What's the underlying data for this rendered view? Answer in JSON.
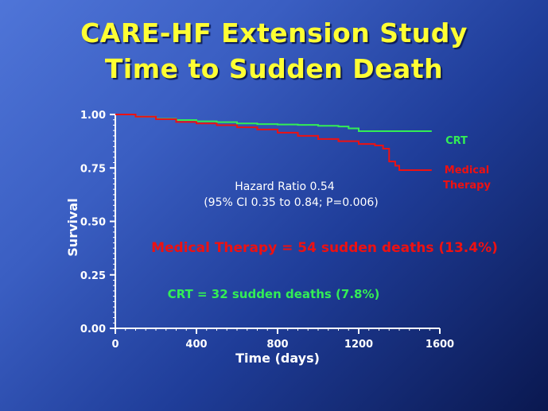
{
  "slide": {
    "title_line1": "CARE-HF Extension Study",
    "title_line2": "Time to Sudden Death"
  },
  "chart_data": {
    "type": "line",
    "title": "CARE-HF Extension Study Time to Sudden Death",
    "xlabel": "Time (days)",
    "ylabel": "Survival",
    "xlim": [
      0,
      1600
    ],
    "ylim": [
      0,
      1.0
    ],
    "x_ticks": [
      0,
      400,
      800,
      1200,
      1600
    ],
    "x_tick_labels": [
      "0",
      "400",
      "800",
      "1200",
      "1600"
    ],
    "y_ticks": [
      0,
      0.25,
      0.5,
      0.75,
      1.0
    ],
    "y_tick_labels": [
      "0.00",
      "0.25",
      "0.50",
      "0.75",
      "1.00"
    ],
    "series": [
      {
        "name": "CRT",
        "color": "#33ee55",
        "x": [
          0,
          100,
          200,
          300,
          400,
          500,
          600,
          700,
          800,
          900,
          1000,
          1100,
          1150,
          1200,
          1300,
          1400,
          1500,
          1560
        ],
        "y": [
          1.0,
          0.99,
          0.98,
          0.974,
          0.968,
          0.964,
          0.958,
          0.955,
          0.953,
          0.951,
          0.947,
          0.944,
          0.935,
          0.922,
          0.922,
          0.922,
          0.922,
          0.922
        ]
      },
      {
        "name": "Medical Therapy",
        "color": "#ee1111",
        "x": [
          0,
          100,
          200,
          300,
          400,
          500,
          600,
          700,
          800,
          900,
          1000,
          1100,
          1200,
          1280,
          1320,
          1350,
          1380,
          1400,
          1500,
          1560
        ],
        "y": [
          1.0,
          0.99,
          0.978,
          0.965,
          0.958,
          0.95,
          0.94,
          0.93,
          0.915,
          0.9,
          0.885,
          0.875,
          0.862,
          0.855,
          0.84,
          0.78,
          0.76,
          0.74,
          0.74,
          0.74
        ]
      }
    ],
    "legend_labels": {
      "crt": "CRT",
      "medical_line1": "Medical",
      "medical_line2": "Therapy"
    },
    "annotations": {
      "hazard_line1": "Hazard Ratio 0.54",
      "hazard_line2": "(95% CI 0.35 to 0.84; P=0.006)",
      "medical_deaths": "Medical Therapy = 54 sudden deaths (13.4%)",
      "crt_deaths": "CRT = 32 sudden deaths (7.8%)"
    }
  }
}
